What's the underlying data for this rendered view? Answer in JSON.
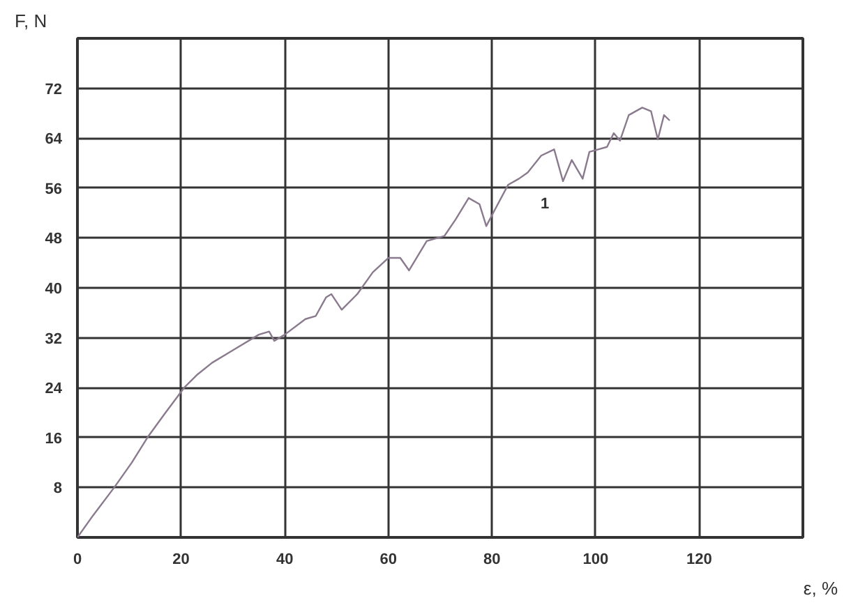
{
  "chart_data": {
    "type": "line",
    "xlabel": "ε, %",
    "ylabel": "F, N",
    "x": [
      0,
      3,
      7.1,
      10.5,
      13.5,
      17,
      20.6,
      23,
      26,
      30,
      35,
      37,
      38,
      40,
      44,
      46,
      48,
      49,
      51,
      54,
      57,
      60,
      62.3,
      64,
      67.4,
      70.8,
      73,
      75.5,
      77.6,
      78.9,
      80.6,
      83.1,
      85.2,
      86.9,
      89.5,
      92,
      93.7,
      95.4,
      97.5,
      98.8,
      100.5,
      102.2,
      103.5,
      104.7,
      106.4,
      109,
      110.7,
      112,
      113.2,
      114.2
    ],
    "series": [
      {
        "color": "#8a7a8e",
        "values": [
          0,
          3.5,
          8,
          12,
          16,
          20,
          24,
          26,
          28,
          30,
          32.5,
          33,
          31.5,
          32.5,
          35,
          35.5,
          38.5,
          39,
          36.5,
          39,
          42.5,
          44.8,
          44.8,
          42.8,
          47.5,
          48.3,
          51,
          54.4,
          53.4,
          49.9,
          52.6,
          56.5,
          57.5,
          58.5,
          61.2,
          62.2,
          57.1,
          60.5,
          57.5,
          61.8,
          62.2,
          62.6,
          64.8,
          63.6,
          67.7,
          68.9,
          68.3,
          63.8,
          67.7,
          66.9
        ]
      }
    ],
    "annotations": [
      "1"
    ],
    "xlim": [
      0,
      140
    ],
    "ylim": [
      0,
      80
    ],
    "xticks": [
      0,
      20,
      40,
      60,
      80,
      100,
      120
    ],
    "yticks": [
      8,
      16,
      24,
      32,
      40,
      48,
      56,
      64,
      72
    ],
    "grid": true,
    "marker": "none",
    "line_style": "solid"
  }
}
